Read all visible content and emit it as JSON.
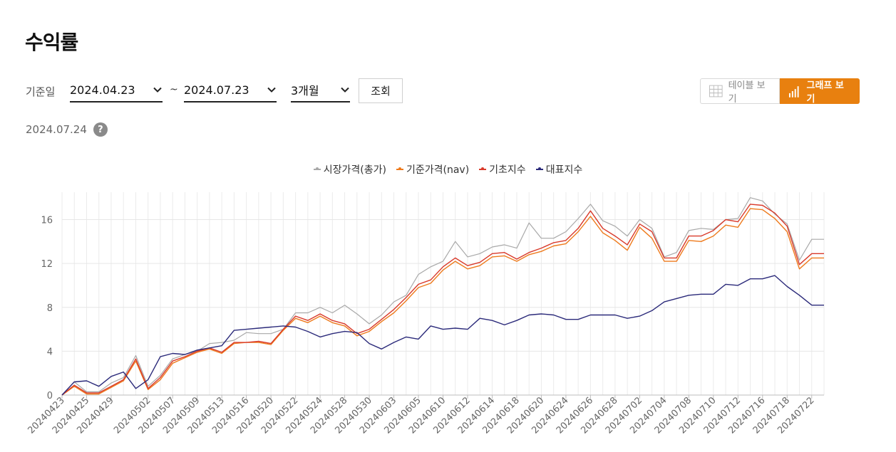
{
  "page": {
    "title": "수익률"
  },
  "filters": {
    "label": "기준일",
    "start_date": "2024.04.23",
    "separator": "~",
    "end_date": "2024.07.23",
    "period": "3개월",
    "search_button": "조회"
  },
  "view_toggle": {
    "table_label": "테이블 보기",
    "graph_label": "그래프 보기",
    "active": "graph"
  },
  "as_of": {
    "date": "2024.07.24",
    "help_label": "?"
  },
  "colors": {
    "accent": "#e8800f",
    "market": "#a8a8a8",
    "nav": "#ee7a1c",
    "base": "#d93a2b",
    "index": "#2b2a7a"
  },
  "chart_data": {
    "type": "line",
    "xlabel": "",
    "ylabel": "",
    "ylim": [
      0,
      18.5
    ],
    "yticks": [
      0,
      4,
      8,
      12,
      16
    ],
    "grid": true,
    "legend_position": "top-center",
    "x": [
      "20240423",
      "20240424",
      "20240425",
      "20240426",
      "20240429",
      "20240430",
      "20240501",
      "20240502",
      "20240503",
      "20240507",
      "20240508",
      "20240509",
      "20240510",
      "20240513",
      "20240514",
      "20240516",
      "20240517",
      "20240520",
      "20240521",
      "20240522",
      "20240523",
      "20240524",
      "20240527",
      "20240528",
      "20240529",
      "20240530",
      "20240531",
      "20240603",
      "20240604",
      "20240605",
      "20240607",
      "20240610",
      "20240611",
      "20240612",
      "20240613",
      "20240614",
      "20240617",
      "20240618",
      "20240619",
      "20240620",
      "20240621",
      "20240624",
      "20240625",
      "20240626",
      "20240627",
      "20240628",
      "20240701",
      "20240702",
      "20240703",
      "20240704",
      "20240705",
      "20240708",
      "20240709",
      "20240710",
      "20240711",
      "20240712",
      "20240715",
      "20240716",
      "20240717",
      "20240718",
      "20240719",
      "20240722",
      "20240723"
    ],
    "x_tick_labels": [
      "20240423",
      "20240425",
      "20240429",
      "20240502",
      "20240507",
      "20240509",
      "20240513",
      "20240516",
      "20240520",
      "20240522",
      "20240524",
      "20240528",
      "20240530",
      "20240603",
      "20240605",
      "20240610",
      "20240612",
      "20240614",
      "20240618",
      "20240620",
      "20240624",
      "20240626",
      "20240628",
      "20240702",
      "20240704",
      "20240708",
      "20240710",
      "20240712",
      "20240716",
      "20240718",
      "20240722"
    ],
    "series": [
      {
        "name": "시장가격(총가)",
        "color": "#a8a8a8",
        "values": [
          0,
          1.2,
          0.3,
          0.3,
          1.1,
          1.6,
          3.6,
          0.8,
          1.8,
          3.3,
          3.7,
          4,
          4.7,
          4.8,
          5,
          5.7,
          5.6,
          5.6,
          6,
          7.5,
          7.5,
          8,
          7.5,
          8.2,
          7.4,
          6.5,
          7.3,
          8.5,
          9.1,
          11,
          11.7,
          12.2,
          14,
          12.6,
          12.9,
          13.5,
          13.7,
          13.4,
          15.7,
          14.3,
          14.3,
          14.9,
          16.1,
          17.4,
          15.9,
          15.4,
          14.5,
          16,
          15.2,
          12.6,
          13,
          15,
          15.2,
          15.1,
          16,
          16.1,
          18,
          17.7,
          16.5,
          15.6,
          12.3,
          14.2,
          14.2
        ]
      },
      {
        "name": "기준가격(nav)",
        "color": "#ee7a1c",
        "values": [
          0,
          0.8,
          0.1,
          0.1,
          0.7,
          1.3,
          3.1,
          0.5,
          1.4,
          2.9,
          3.4,
          3.9,
          4.2,
          3.8,
          4.7,
          4.8,
          4.8,
          4.6,
          5.9,
          7,
          6.6,
          7.2,
          6.6,
          6.3,
          5.4,
          5.8,
          6.7,
          7.5,
          8.6,
          9.8,
          10.2,
          11.4,
          12.2,
          11.5,
          11.8,
          12.6,
          12.7,
          12.2,
          12.8,
          13.1,
          13.6,
          13.8,
          14.9,
          16.3,
          14.8,
          14.1,
          13.2,
          15.3,
          14.3,
          12.2,
          12.2,
          14.1,
          14,
          14.5,
          15.5,
          15.3,
          17,
          16.9,
          16.1,
          14.9,
          11.5,
          12.5,
          12.5
        ]
      },
      {
        "name": "기초지수",
        "color": "#d93a2b",
        "values": [
          0,
          0.9,
          0.2,
          0.2,
          0.8,
          1.4,
          3.3,
          0.6,
          1.6,
          3.1,
          3.5,
          4,
          4.3,
          3.9,
          4.8,
          4.8,
          4.9,
          4.7,
          6,
          7.2,
          6.8,
          7.4,
          6.8,
          6.5,
          5.6,
          6,
          6.9,
          7.8,
          8.9,
          10.1,
          10.5,
          11.7,
          12.5,
          11.8,
          12.1,
          12.9,
          13,
          12.4,
          13,
          13.4,
          13.9,
          14.1,
          15.2,
          16.8,
          15.2,
          14.5,
          13.7,
          15.6,
          14.9,
          12.5,
          12.5,
          14.5,
          14.5,
          15,
          16,
          15.8,
          17.4,
          17.3,
          16.6,
          15.4,
          11.9,
          12.9,
          12.9
        ]
      },
      {
        "name": "대표지수",
        "color": "#2b2a7a",
        "values": [
          0,
          1.2,
          1.3,
          0.8,
          1.7,
          2.1,
          0.6,
          1.4,
          3.5,
          3.8,
          3.7,
          4.1,
          4.3,
          4.5,
          5.9,
          6,
          6.1,
          6.2,
          6.3,
          6.2,
          5.8,
          5.3,
          5.6,
          5.8,
          5.7,
          4.7,
          4.2,
          4.8,
          5.3,
          5.1,
          6.3,
          6,
          6.1,
          6,
          7,
          6.8,
          6.4,
          6.8,
          7.3,
          7.4,
          7.3,
          6.9,
          6.9,
          7.3,
          7.3,
          7.3,
          7,
          7.2,
          7.7,
          8.5,
          8.8,
          9.1,
          9.2,
          9.2,
          10.1,
          10,
          10.6,
          10.6,
          10.9,
          9.9,
          9.1,
          8.2,
          8.2
        ]
      }
    ]
  }
}
